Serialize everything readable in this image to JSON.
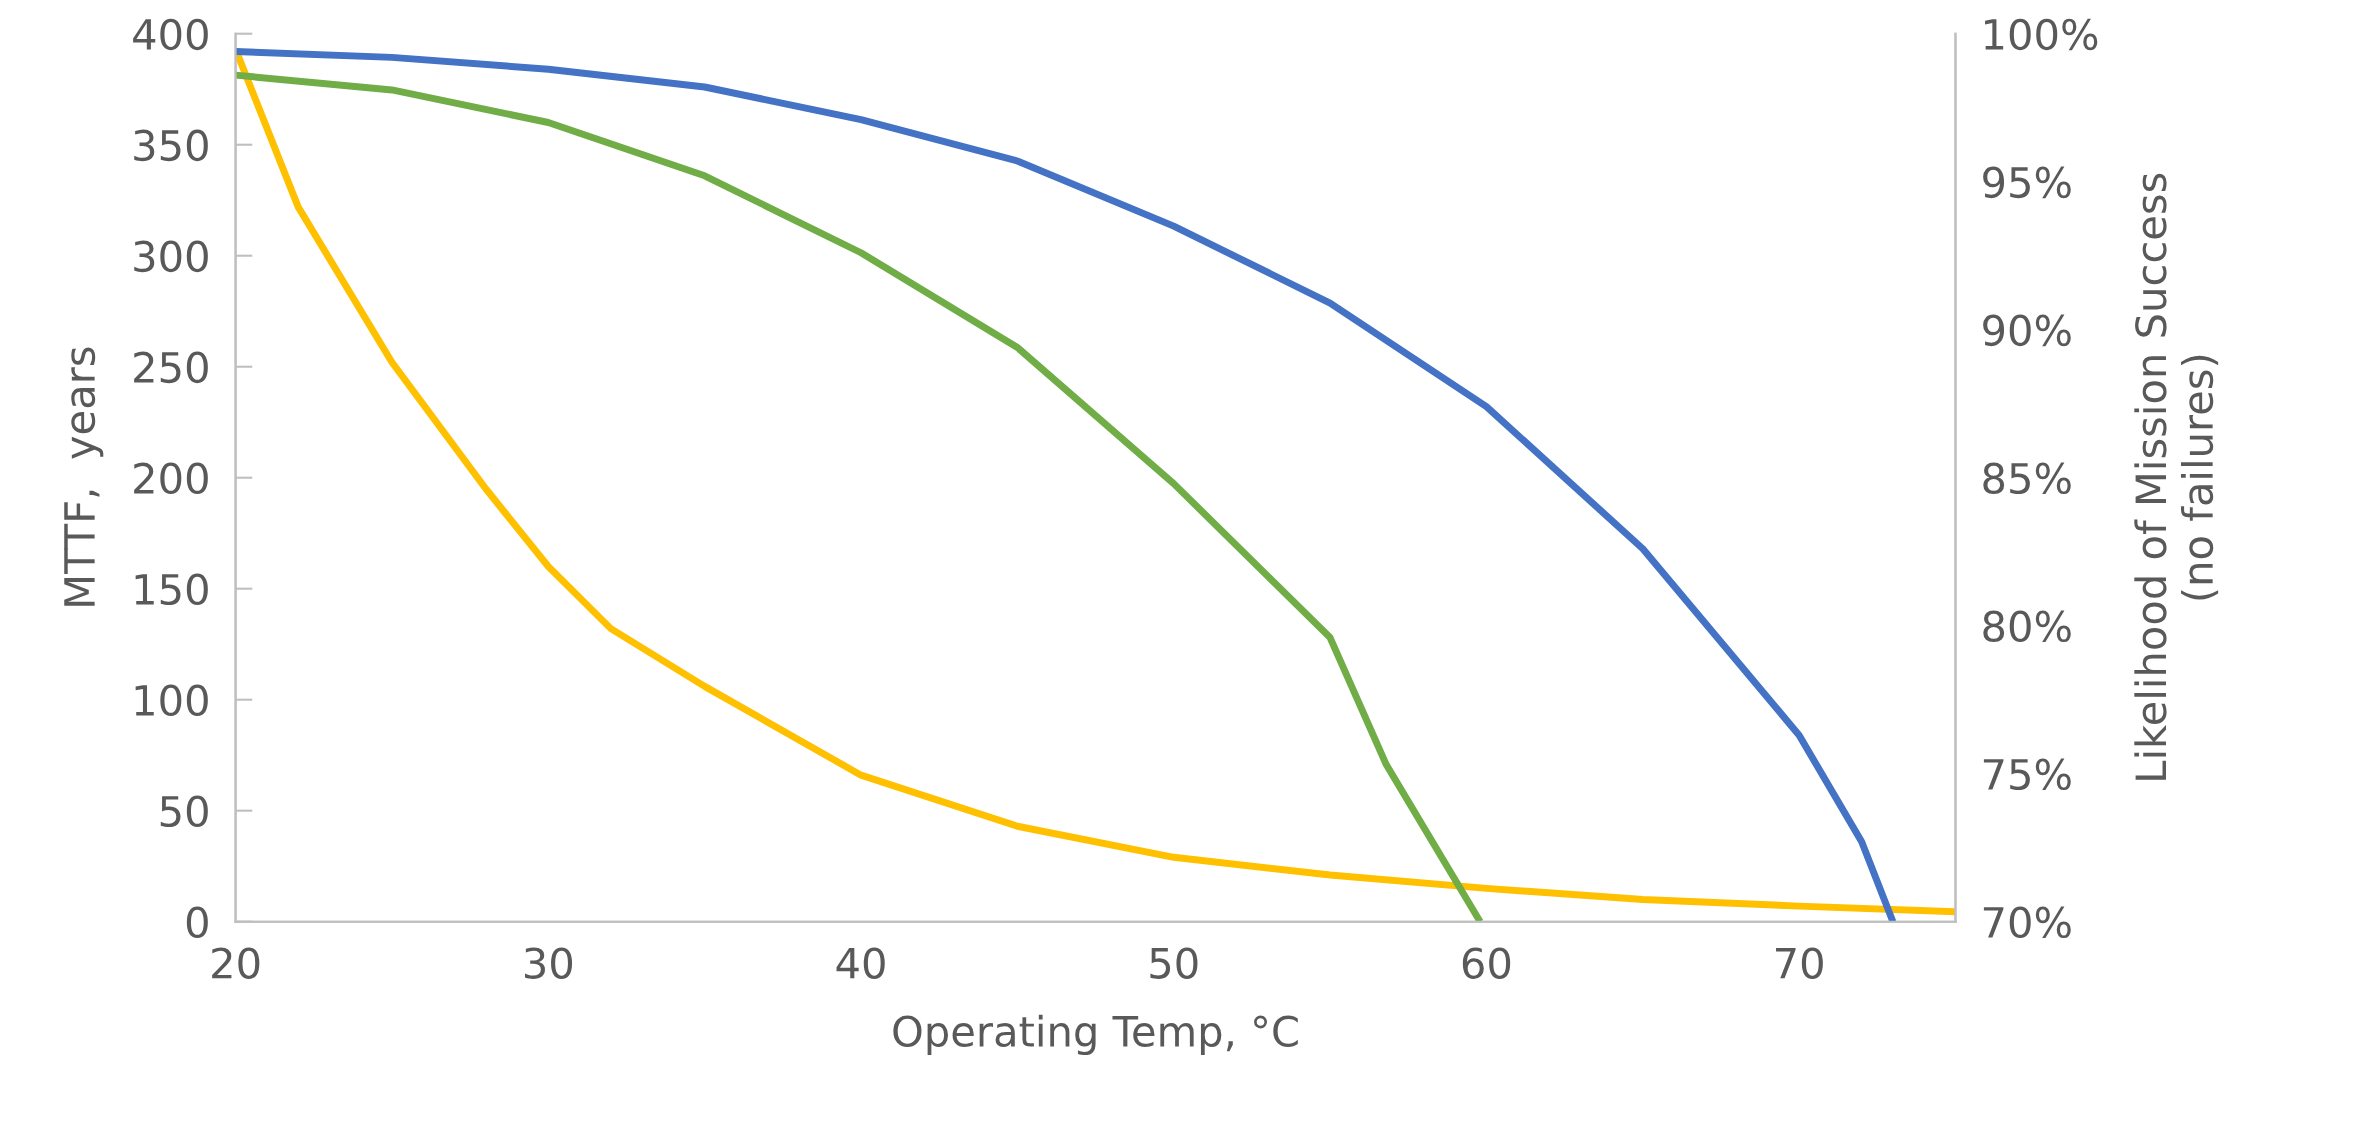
{
  "chart_data": {
    "type": "line",
    "xlabel": "Operating Temp, °C",
    "ylabel": "MTTF,  years",
    "y2label": "Likelihood of Mission Success\n(no failures)",
    "xlim": [
      20,
      75
    ],
    "xticks": [
      20,
      30,
      40,
      50,
      60,
      70
    ],
    "ylim": [
      0,
      400
    ],
    "yticks": [
      0,
      50,
      100,
      150,
      200,
      250,
      300,
      350,
      400
    ],
    "y2lim": [
      70,
      100
    ],
    "y2ticks": [
      {
        "value": 70,
        "label": "70%"
      },
      {
        "value": 75,
        "label": "75%"
      },
      {
        "value": 80,
        "label": "80%"
      },
      {
        "value": 85,
        "label": "85%"
      },
      {
        "value": 90,
        "label": "90%"
      },
      {
        "value": 95,
        "label": "95%"
      },
      {
        "value": 100,
        "label": "100%"
      }
    ],
    "grid": false,
    "legend": false,
    "line_style": "solid",
    "marker": "none",
    "series": [
      {
        "color": "#4472c4",
        "axis": "y2",
        "x": [
          20,
          25,
          30,
          35,
          40,
          45,
          50,
          55,
          60,
          65,
          70,
          72,
          73
        ],
        "values": [
          99.4,
          99.2,
          98.8,
          98.2,
          97.1,
          95.7,
          93.5,
          90.9,
          87.4,
          82.6,
          76.3,
          72.7,
          70
        ]
      },
      {
        "color": "#70ad47",
        "axis": "y2",
        "x": [
          20,
          25,
          30,
          35,
          40,
          45,
          50,
          55,
          56.8,
          59.8
        ],
        "values": [
          98.6,
          98.1,
          97.0,
          95.2,
          92.6,
          89.4,
          84.8,
          79.6,
          75.3,
          70
        ]
      },
      {
        "color": "#ffc000",
        "axis": "y",
        "x": [
          20,
          22,
          25,
          28,
          30,
          32,
          35,
          40,
          45,
          50,
          55,
          60,
          65,
          70,
          75
        ],
        "values": [
          393,
          322,
          252,
          195,
          160,
          132,
          106,
          66,
          43,
          29,
          21,
          15,
          10,
          7,
          4.5
        ]
      }
    ]
  }
}
